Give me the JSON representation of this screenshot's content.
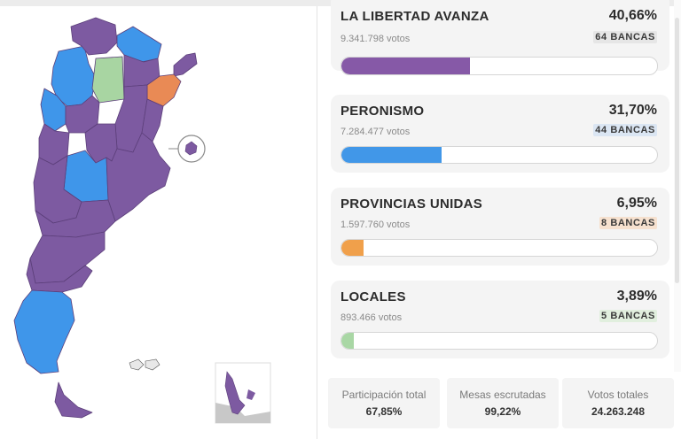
{
  "colors": {
    "lla": "#8659a7",
    "peronismo": "#4197e8",
    "provincias_unidas": "#f0a04b",
    "locales": "#a9d7a5",
    "map_purple": "#7d5aa1",
    "map_blue": "#3f96ea",
    "map_green": "#a8d5a2",
    "map_orange": "#e98a55"
  },
  "parties": [
    {
      "name": "LA LIBERTAD AVANZA",
      "percent": "40,66%",
      "votes": "9.341.798 votos",
      "seats": "64 BANCAS",
      "share": 40.66,
      "color_key": "lla",
      "seat_badge_color": "#e6e6e6"
    },
    {
      "name": "PERONISMO",
      "percent": "31,70%",
      "votes": "7.284.477 votos",
      "seats": "44 BANCAS",
      "share": 31.7,
      "color_key": "peronismo",
      "seat_badge_color": "#dbe6f3"
    },
    {
      "name": "PROVINCIAS UNIDAS",
      "percent": "6,95%",
      "votes": "1.597.760 votos",
      "seats": "8 BANCAS",
      "share": 6.95,
      "color_key": "provincias_unidas",
      "seat_badge_color": "#f6e1cf"
    },
    {
      "name": "LOCALES",
      "percent": "3,89%",
      "votes": "893.466 votos",
      "seats": "5 BANCAS",
      "share": 3.89,
      "color_key": "locales",
      "seat_badge_color": "#e1efde"
    }
  ],
  "stats": [
    {
      "label": "Participación total",
      "value": "67,85%"
    },
    {
      "label": "Mesas escrutadas",
      "value": "99,22%"
    },
    {
      "label": "Votos totales",
      "value": "24.263.248"
    }
  ],
  "map": {
    "legend": "map-of-argentina-by-province-winner"
  }
}
